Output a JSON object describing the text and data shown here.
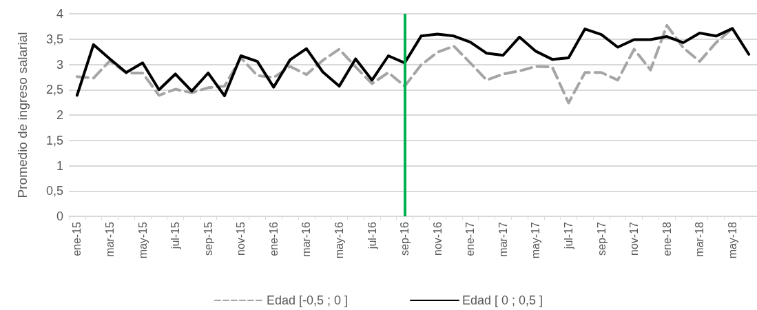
{
  "chart_data": {
    "type": "line",
    "ylabel": "Promedio de ingreso salarial",
    "categories": [
      "ene-15",
      null,
      "mar-15",
      null,
      "may-15",
      null,
      "jul-15",
      null,
      "sep-15",
      null,
      "nov-15",
      null,
      "ene-16",
      null,
      "mar-16",
      null,
      "may-16",
      null,
      "jul-16",
      null,
      "sep-16",
      null,
      "nov-16",
      null,
      "ene-17",
      null,
      "mar-17",
      null,
      "may-17",
      null,
      "jul-17",
      null,
      "sep-17",
      null,
      "nov-17",
      null,
      "ene-18",
      null,
      "mar-18",
      null,
      "may-18",
      null
    ],
    "series": [
      {
        "name": "Edad [-0,5 ; 0 ]",
        "color": "#a5a5a5",
        "line_style": "dashed",
        "values": [
          2.76,
          2.73,
          3.07,
          2.83,
          2.83,
          2.39,
          2.51,
          2.44,
          2.54,
          2.57,
          3.13,
          2.78,
          2.74,
          2.96,
          2.8,
          3.08,
          3.3,
          2.95,
          2.62,
          2.84,
          2.57,
          2.99,
          3.24,
          3.36,
          3.03,
          2.69,
          2.81,
          2.87,
          2.96,
          2.95,
          2.24,
          2.84,
          2.84,
          2.69,
          3.3,
          2.89,
          3.77,
          3.33,
          3.06,
          3.43,
          3.71,
          null
        ]
      },
      {
        "name": "Edad [ 0 ; 0,5 ]",
        "color": "#000000",
        "line_style": "solid",
        "values": [
          2.39,
          3.39,
          3.11,
          2.84,
          3.03,
          2.5,
          2.81,
          2.47,
          2.83,
          2.38,
          3.17,
          3.06,
          2.55,
          3.09,
          3.31,
          2.85,
          2.57,
          3.11,
          2.69,
          3.17,
          3.03,
          3.56,
          3.6,
          3.56,
          3.44,
          3.22,
          3.18,
          3.54,
          3.26,
          3.1,
          3.13,
          3.7,
          3.59,
          3.34,
          3.49,
          3.49,
          3.55,
          3.43,
          3.62,
          3.56,
          3.71,
          3.2
        ]
      }
    ],
    "ylim": [
      0,
      4
    ],
    "yticks": [
      0,
      {
        "value": 0.5,
        "label": "0,5"
      },
      1,
      {
        "value": 1.5,
        "label": "1,5"
      },
      2,
      {
        "value": 2.5,
        "label": "2,5"
      },
      3,
      {
        "value": 3.5,
        "label": "3,5"
      },
      4
    ],
    "grid": "y",
    "legend": "bottom",
    "marker": "none",
    "ref_lines": [
      {
        "axis": "x",
        "value": "sep-16",
        "color": "#00b050"
      }
    ]
  }
}
